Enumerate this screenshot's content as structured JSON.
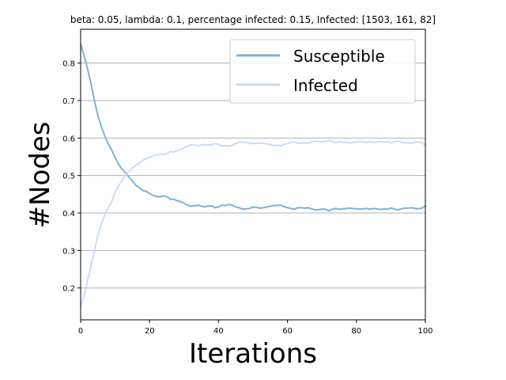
{
  "chart_data": {
    "type": "line",
    "title": "beta: 0.05, lambda: 0.1, percentage infected: 0.15, Infected: [1503, 161, 82]",
    "xlabel": "Iterations",
    "ylabel": "#Nodes",
    "xlim": [
      0,
      100
    ],
    "ylim": [
      0.115,
      0.89
    ],
    "xticks": [
      0,
      20,
      40,
      60,
      80,
      100
    ],
    "yticks": [
      0.2,
      0.3,
      0.4,
      0.5,
      0.6,
      0.7,
      0.8
    ],
    "grid": "horizontal",
    "legend_position": "upper-right",
    "series": [
      {
        "name": "Susceptible",
        "color": "#7eb1d6",
        "x": [
          0,
          1,
          2,
          3,
          4,
          5,
          6,
          7,
          8,
          9,
          10,
          11,
          12,
          13,
          14,
          15,
          16,
          17,
          18,
          19,
          20,
          21,
          22,
          23,
          24,
          25,
          26,
          27,
          28,
          29,
          30,
          31,
          32,
          33,
          34,
          35,
          36,
          37,
          38,
          39,
          40,
          41,
          42,
          43,
          44,
          45,
          46,
          47,
          48,
          49,
          50,
          51,
          52,
          53,
          54,
          55,
          56,
          57,
          58,
          59,
          60,
          61,
          62,
          63,
          64,
          65,
          66,
          67,
          68,
          69,
          70,
          71,
          72,
          73,
          74,
          75,
          76,
          77,
          78,
          79,
          80,
          81,
          82,
          83,
          84,
          85,
          86,
          87,
          88,
          89,
          90,
          91,
          92,
          93,
          94,
          95,
          96,
          97,
          98,
          99,
          100
        ],
        "values": [
          0.85,
          0.82,
          0.785,
          0.745,
          0.7,
          0.66,
          0.63,
          0.605,
          0.585,
          0.568,
          0.548,
          0.53,
          0.517,
          0.507,
          0.496,
          0.485,
          0.474,
          0.468,
          0.46,
          0.458,
          0.452,
          0.447,
          0.444,
          0.443,
          0.446,
          0.443,
          0.437,
          0.437,
          0.433,
          0.43,
          0.426,
          0.421,
          0.418,
          0.419,
          0.421,
          0.419,
          0.416,
          0.419,
          0.419,
          0.414,
          0.416,
          0.421,
          0.42,
          0.423,
          0.421,
          0.416,
          0.414,
          0.41,
          0.411,
          0.412,
          0.416,
          0.415,
          0.413,
          0.414,
          0.416,
          0.418,
          0.42,
          0.42,
          0.421,
          0.417,
          0.414,
          0.412,
          0.41,
          0.414,
          0.414,
          0.413,
          0.414,
          0.411,
          0.408,
          0.409,
          0.41,
          0.41,
          0.406,
          0.41,
          0.412,
          0.41,
          0.411,
          0.412,
          0.413,
          0.412,
          0.411,
          0.41,
          0.411,
          0.412,
          0.41,
          0.412,
          0.411,
          0.409,
          0.411,
          0.41,
          0.413,
          0.411,
          0.408,
          0.411,
          0.413,
          0.413,
          0.414,
          0.412,
          0.411,
          0.413,
          0.419
        ]
      },
      {
        "name": "Infected",
        "color": "#cddcf1",
        "x": [
          0,
          1,
          2,
          3,
          4,
          5,
          6,
          7,
          8,
          9,
          10,
          11,
          12,
          13,
          14,
          15,
          16,
          17,
          18,
          19,
          20,
          21,
          22,
          23,
          24,
          25,
          26,
          27,
          28,
          29,
          30,
          31,
          32,
          33,
          34,
          35,
          36,
          37,
          38,
          39,
          40,
          41,
          42,
          43,
          44,
          45,
          46,
          47,
          48,
          49,
          50,
          51,
          52,
          53,
          54,
          55,
          56,
          57,
          58,
          59,
          60,
          61,
          62,
          63,
          64,
          65,
          66,
          67,
          68,
          69,
          70,
          71,
          72,
          73,
          74,
          75,
          76,
          77,
          78,
          79,
          80,
          81,
          82,
          83,
          84,
          85,
          86,
          87,
          88,
          89,
          90,
          91,
          92,
          93,
          94,
          95,
          96,
          97,
          98,
          99,
          100
        ],
        "values": [
          0.15,
          0.18,
          0.22,
          0.26,
          0.3,
          0.34,
          0.37,
          0.395,
          0.413,
          0.43,
          0.455,
          0.472,
          0.487,
          0.5,
          0.51,
          0.52,
          0.527,
          0.533,
          0.54,
          0.545,
          0.548,
          0.552,
          0.555,
          0.557,
          0.556,
          0.558,
          0.564,
          0.563,
          0.566,
          0.57,
          0.574,
          0.578,
          0.582,
          0.581,
          0.579,
          0.581,
          0.583,
          0.581,
          0.582,
          0.585,
          0.583,
          0.579,
          0.58,
          0.578,
          0.58,
          0.585,
          0.589,
          0.589,
          0.588,
          0.587,
          0.585,
          0.586,
          0.586,
          0.586,
          0.584,
          0.582,
          0.58,
          0.581,
          0.579,
          0.583,
          0.585,
          0.588,
          0.59,
          0.586,
          0.586,
          0.587,
          0.586,
          0.589,
          0.592,
          0.591,
          0.59,
          0.591,
          0.594,
          0.59,
          0.588,
          0.59,
          0.589,
          0.588,
          0.587,
          0.588,
          0.589,
          0.59,
          0.589,
          0.588,
          0.59,
          0.588,
          0.589,
          0.591,
          0.589,
          0.59,
          0.587,
          0.589,
          0.592,
          0.589,
          0.587,
          0.587,
          0.586,
          0.588,
          0.589,
          0.587,
          0.581
        ]
      }
    ]
  }
}
